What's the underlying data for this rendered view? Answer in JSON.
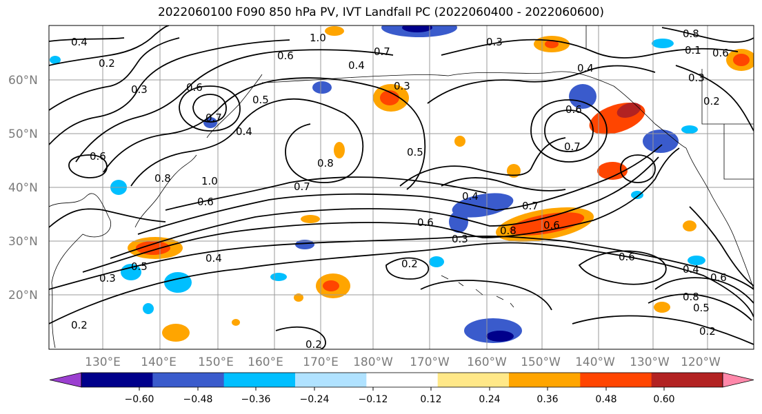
{
  "title": "2022060100 F090 850 hPa PV, IVT Landfall PC (2022060400 - 2022060600)",
  "lat_labels": [
    "60°N",
    "50°N",
    "40°N",
    "30°N",
    "20°N"
  ],
  "lon_labels": [
    "130°E",
    "140°E",
    "150°E",
    "160°E",
    "170°E",
    "180°W",
    "170°W",
    "160°W",
    "150°W",
    "140°W",
    "130°W",
    "120°W"
  ],
  "colorbar": {
    "ticks": [
      "−0.60",
      "−0.48",
      "−0.36",
      "−0.24",
      "−0.12",
      "0.12",
      "0.24",
      "0.36",
      "0.48",
      "0.60"
    ],
    "colors": [
      "#9b3fd0",
      "#00008b",
      "#3a5bcc",
      "#00bfff",
      "#b0e2ff",
      "#ffffff",
      "#ffe888",
      "#ffa500",
      "#ff4500",
      "#b22222",
      "#ff88aa"
    ]
  },
  "contour_labels": [
    "0.4",
    "0.2",
    "1.0",
    "0.6",
    "0.7",
    "0.4",
    "0.3",
    "0.8",
    "0.1",
    "0.6",
    "0.3",
    "0.6",
    "0.5",
    "0.7",
    "0.4",
    "0.3",
    "0.4",
    "0.6",
    "0.7",
    "0.2",
    "0.3",
    "0.8",
    "0.5",
    "0.7",
    "0.6",
    "0.4",
    "0.7",
    "0.8",
    "0.6",
    "0.6",
    "0.3",
    "0.2",
    "0.4",
    "0.5",
    "0.3",
    "0.2",
    "0.2",
    "0.6",
    "0.4",
    "0.6",
    "0.8",
    "0.5",
    "0.2",
    "1.0",
    "0.6",
    "0.8"
  ],
  "colors": {
    "contour": "#000000",
    "grid": "#9a9a9a",
    "axis_label": "#7a7a7a"
  }
}
